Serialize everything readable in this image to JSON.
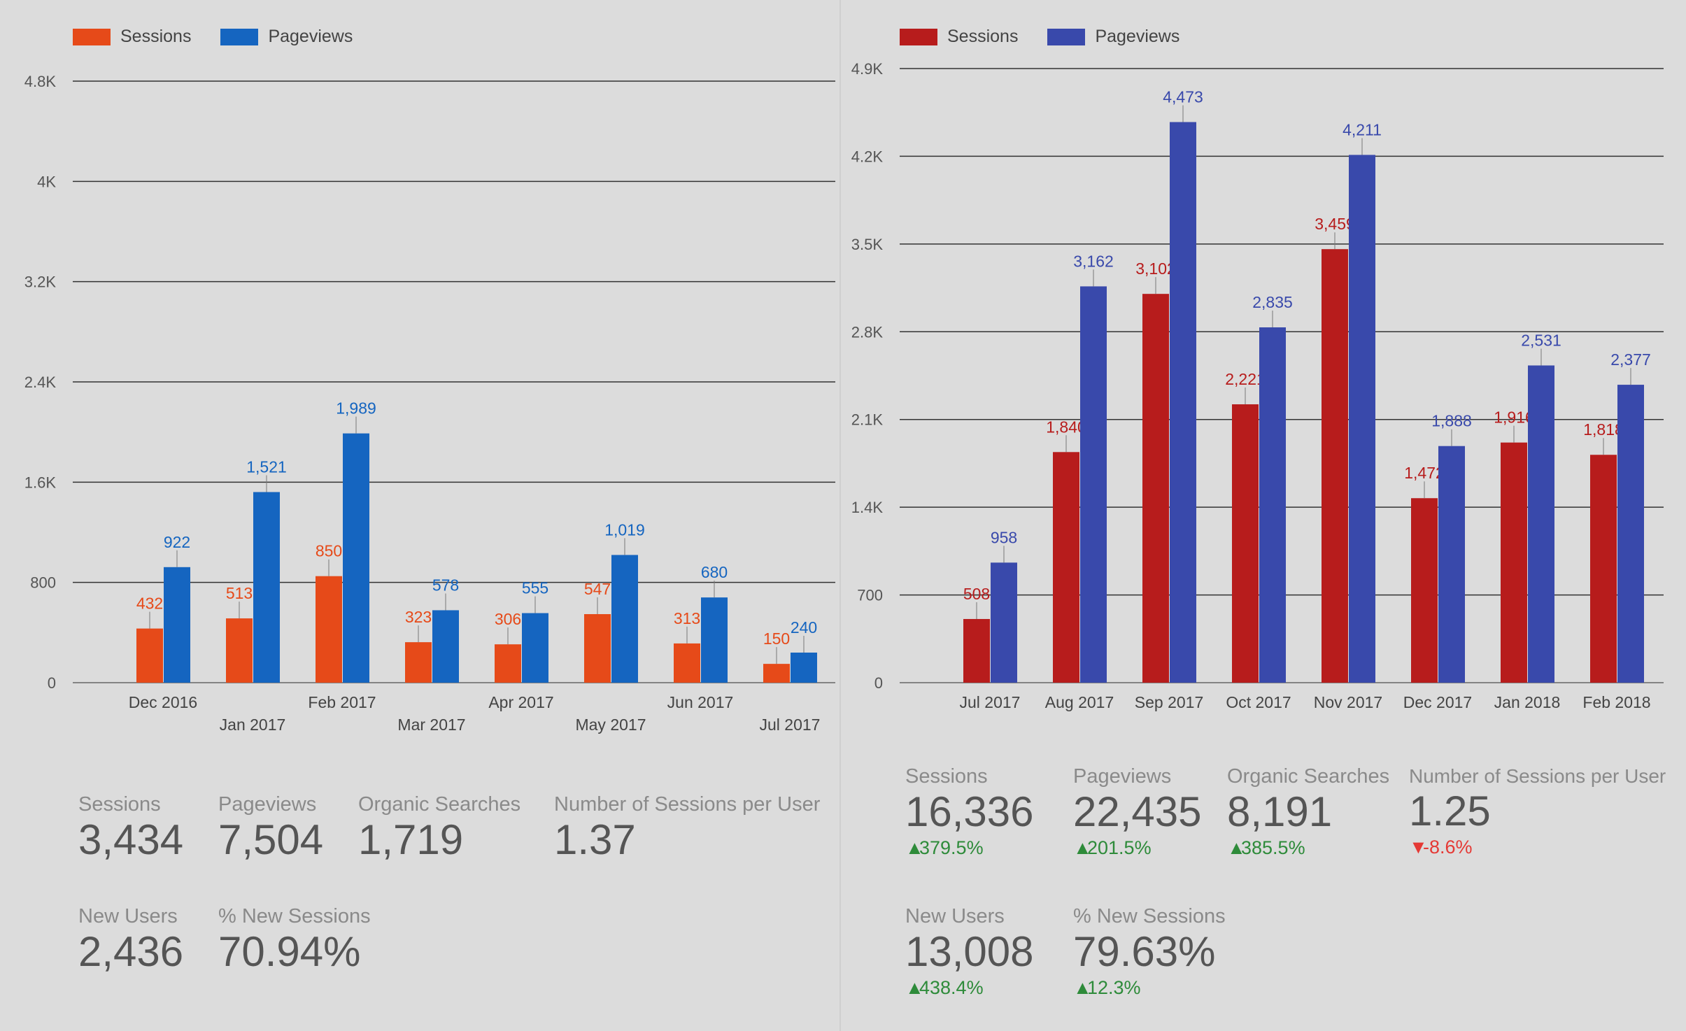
{
  "charts": [
    {
      "chart_data": {
        "type": "bar",
        "categories": [
          "Dec 2016",
          "Jan 2017",
          "Feb 2017",
          "Mar 2017",
          "Apr 2017",
          "May 2017",
          "Jun 2017",
          "Jul 2017"
        ],
        "series": [
          {
            "name": "Sessions",
            "values": [
              432,
              513,
              850,
              323,
              306,
              547,
              313,
              150
            ],
            "labels": [
              "432",
              "513",
              "850",
              "323",
              "306",
              "547",
              "313",
              "150"
            ],
            "color": "#e64a19"
          },
          {
            "name": "Pageviews",
            "values": [
              922,
              1521,
              1989,
              578,
              555,
              1019,
              680,
              240
            ],
            "labels": [
              "922",
              "1,521",
              "1,989",
              "578",
              "555",
              "1,019",
              "680",
              "240"
            ],
            "color": "#1565c0"
          }
        ],
        "ylim": [
          0,
          4800
        ],
        "yticks": [
          "0",
          "800",
          "1.6K",
          "2.4K",
          "3.2K",
          "4K",
          "4.8K"
        ],
        "ytick_values": [
          0,
          800,
          1600,
          2400,
          3200,
          4000,
          4800
        ],
        "grid": true,
        "legend": "top-left"
      },
      "metrics_row1": [
        {
          "label": "Sessions",
          "value": "3,434"
        },
        {
          "label": "Pageviews",
          "value": "7,504"
        },
        {
          "label": "Organic Searches",
          "value": "1,719"
        },
        {
          "label": "Number of Sessions per User",
          "value": "1.37"
        }
      ],
      "metrics_row2": [
        {
          "label": "New Users",
          "value": "2,436"
        },
        {
          "label": "% New Sessions",
          "value": "70.94%"
        }
      ]
    },
    {
      "chart_data": {
        "type": "bar",
        "categories": [
          "Jul 2017",
          "Aug 2017",
          "Sep 2017",
          "Oct 2017",
          "Nov 2017",
          "Dec 2017",
          "Jan 2018",
          "Feb 2018"
        ],
        "series": [
          {
            "name": "Sessions",
            "values": [
              508,
              1840,
              3102,
              2221,
              3459,
              1472,
              1916,
              1818
            ],
            "labels": [
              "508",
              "1,840",
              "3,102",
              "2,221",
              "3,459",
              "1,472",
              "1,916",
              "1,818"
            ],
            "color": "#b71c1c"
          },
          {
            "name": "Pageviews",
            "values": [
              958,
              3162,
              4473,
              2835,
              4211,
              1888,
              2531,
              2377
            ],
            "labels": [
              "958",
              "3,162",
              "4,473",
              "2,835",
              "4,211",
              "1,888",
              "2,531",
              "2,377"
            ],
            "color": "#3949ab"
          }
        ],
        "ylim": [
          0,
          4900
        ],
        "yticks": [
          "0",
          "700",
          "1.4K",
          "2.1K",
          "2.8K",
          "3.5K",
          "4.2K",
          "4.9K"
        ],
        "ytick_values": [
          0,
          700,
          1400,
          2100,
          2800,
          3500,
          4200,
          4900
        ],
        "grid": true,
        "legend": "top-left"
      },
      "metrics_row1": [
        {
          "label": "Sessions",
          "value": "16,336",
          "change": "379.5%",
          "direction": "up"
        },
        {
          "label": "Pageviews",
          "value": "22,435",
          "change": "201.5%",
          "direction": "up"
        },
        {
          "label": "Organic Searches",
          "value": "8,191",
          "change": "385.5%",
          "direction": "up"
        },
        {
          "label": "Number of Sessions per User",
          "value": "1.25",
          "change": "-8.6%",
          "direction": "down"
        }
      ],
      "metrics_row2": [
        {
          "label": "New Users",
          "value": "13,008",
          "change": "438.4%",
          "direction": "up"
        },
        {
          "label": "% New Sessions",
          "value": "79.63%",
          "change": "12.3%",
          "direction": "up"
        }
      ]
    }
  ]
}
